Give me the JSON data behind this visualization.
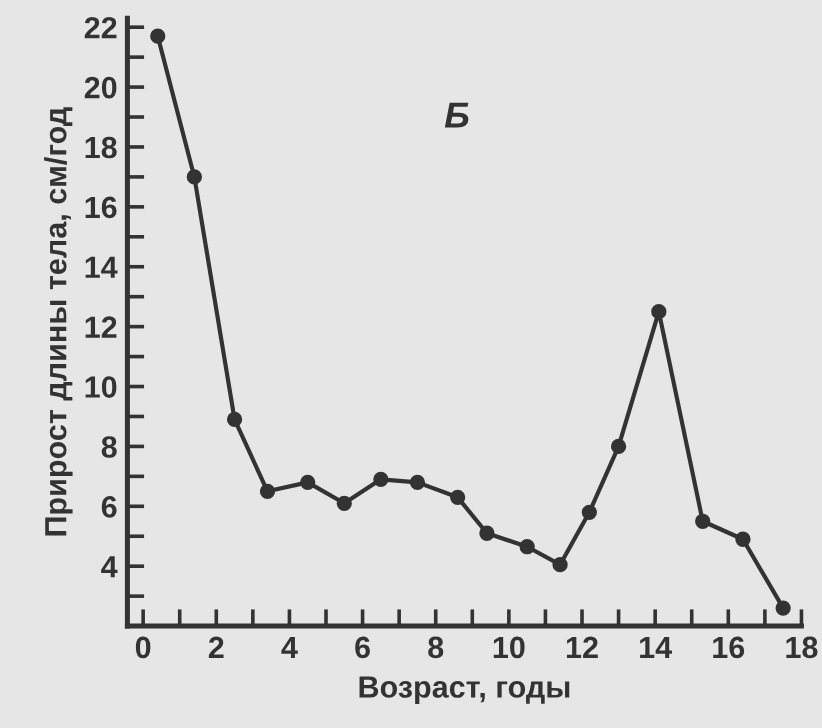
{
  "chart_data": {
    "type": "line",
    "xlabel": "Возраст, годы",
    "ylabel": "Прирост длины тела, см/год",
    "annotations": [
      "Б"
    ],
    "x": [
      0.4,
      1.4,
      2.5,
      3.4,
      4.5,
      5.5,
      6.5,
      7.5,
      8.6,
      9.4,
      10.5,
      11.4,
      12.2,
      13.0,
      14.1,
      15.3,
      16.4,
      17.5
    ],
    "series": [
      {
        "color": "#333333",
        "values": [
          21.7,
          17.0,
          8.9,
          6.5,
          6.8,
          6.1,
          6.9,
          6.8,
          6.3,
          5.1,
          4.65,
          4.05,
          5.8,
          8.0,
          12.5,
          5.5,
          4.9,
          2.6
        ]
      }
    ],
    "xlim": [
      -0.43,
      18
    ],
    "ylim": [
      2,
      22.3
    ],
    "xticks": [
      0,
      {
        "value": 1,
        "label": null
      },
      2,
      {
        "value": 3,
        "label": null
      },
      4,
      {
        "value": 5,
        "label": null
      },
      6,
      {
        "value": 7,
        "label": null
      },
      8,
      {
        "value": 9,
        "label": null
      },
      10,
      {
        "value": 11,
        "label": null
      },
      12,
      {
        "value": 13,
        "label": null
      },
      14,
      {
        "value": 15,
        "label": null
      },
      16,
      {
        "value": 17,
        "label": null
      },
      18
    ],
    "yticks": [
      {
        "value": 3,
        "label": null
      },
      4,
      {
        "value": 5,
        "label": null
      },
      6,
      {
        "value": 7,
        "label": null
      },
      8,
      {
        "value": 9,
        "label": null
      },
      10,
      {
        "value": 11,
        "label": null
      },
      12,
      {
        "value": 13,
        "label": null
      },
      14,
      {
        "value": 15,
        "label": null
      },
      16,
      {
        "value": 17,
        "label": null
      },
      18,
      {
        "value": 19,
        "label": null
      },
      20,
      {
        "value": 21,
        "label": null
      },
      22
    ],
    "marker": "circle",
    "line_style": "solid",
    "grid": false,
    "legend": false
  }
}
